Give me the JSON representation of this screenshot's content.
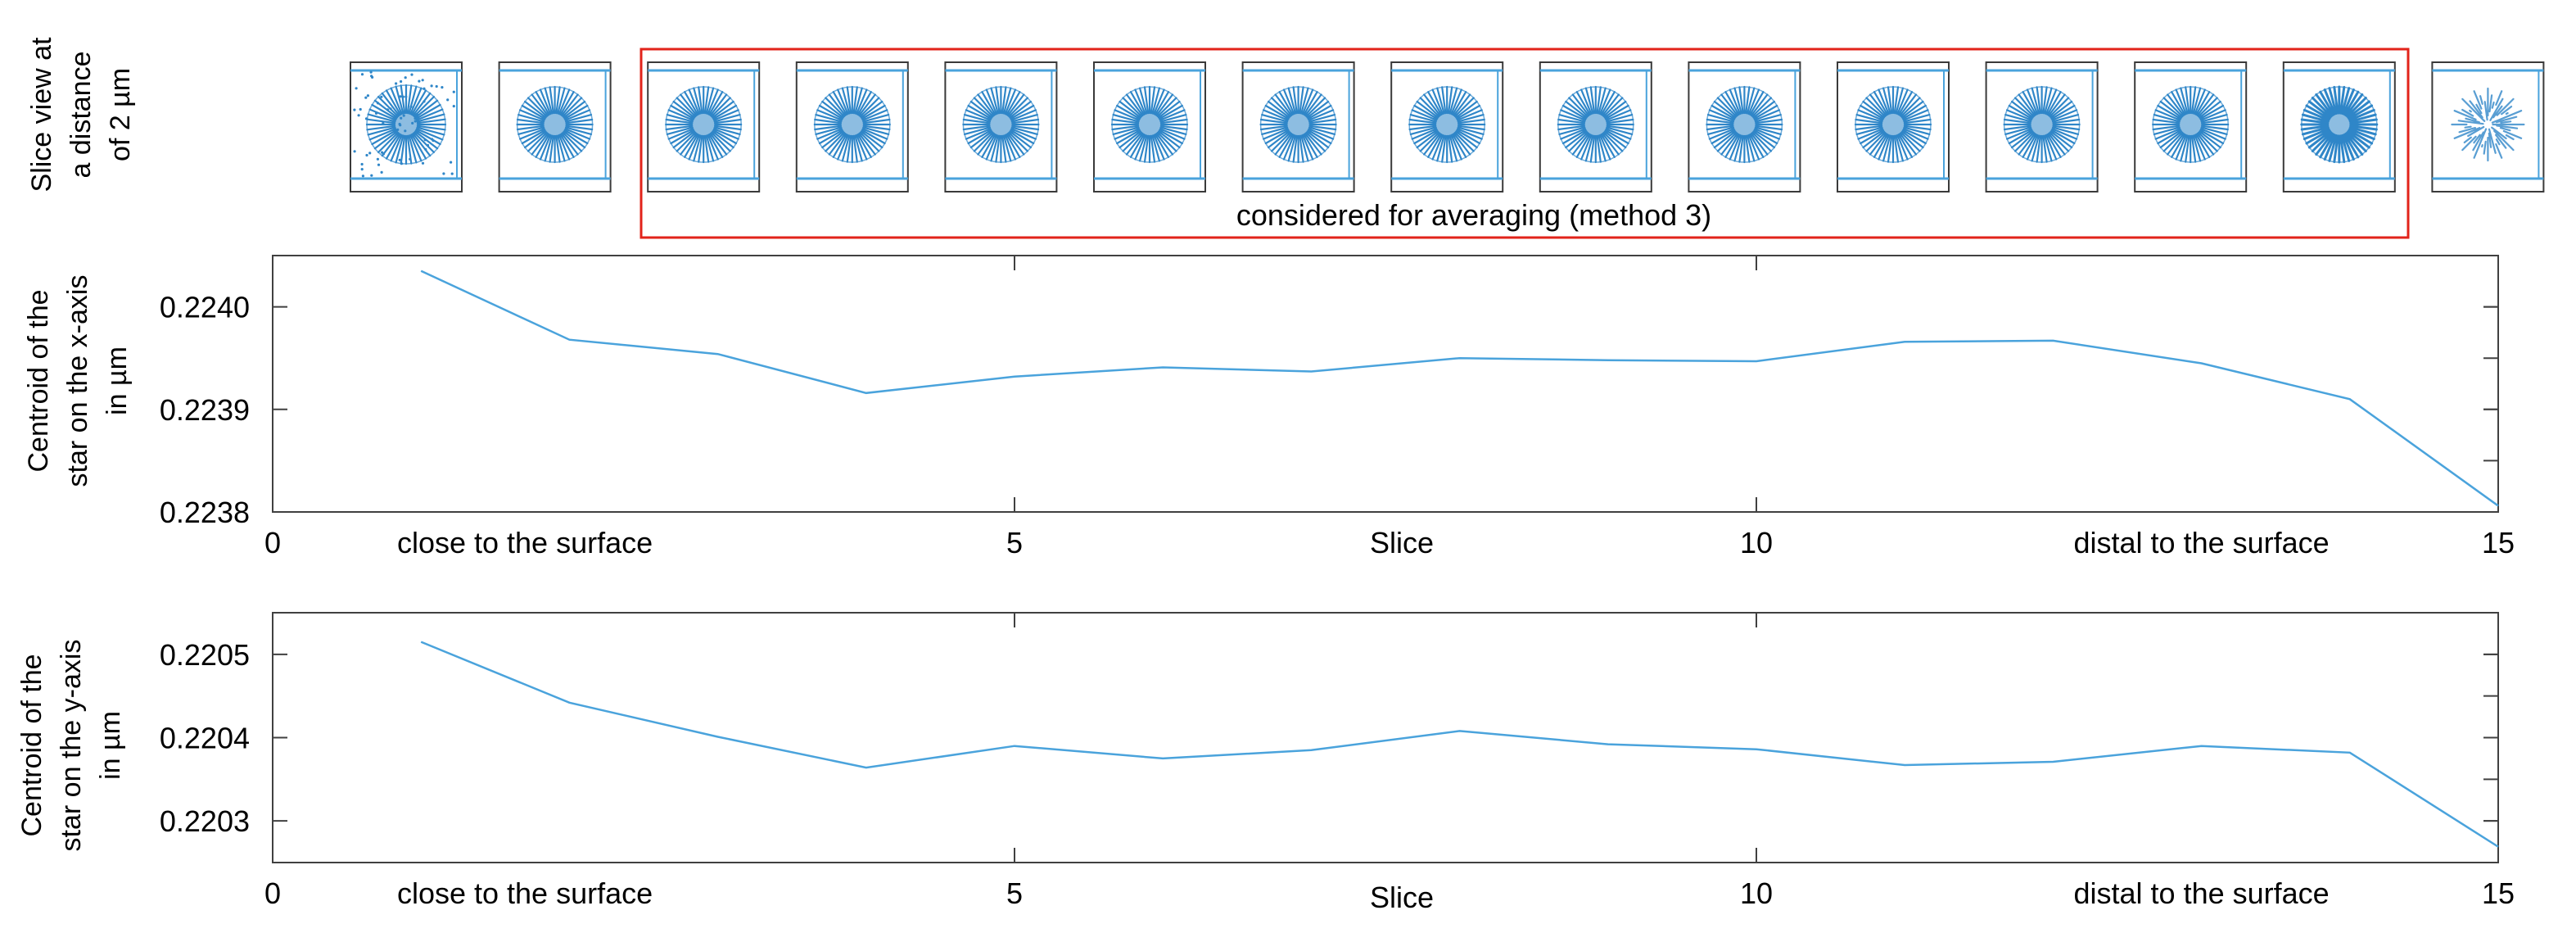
{
  "colors": {
    "line": "#4aa3dc",
    "star": "#2f86c8",
    "frame": "#3a3a3a",
    "highlight": "#e2231a",
    "axis": "#404040"
  },
  "slice_strip": {
    "ylabel_lines": [
      "Slice view at",
      "a distance",
      "of 2 µm"
    ],
    "thumbnail_count": 15,
    "highlight_range": [
      3,
      14
    ],
    "highlight_label": "considered for averaging (method 3)"
  },
  "chart_data": [
    {
      "type": "line",
      "title": "",
      "ylabel_lines": [
        "Centroid of the",
        "star on the x-axis",
        "in µm"
      ],
      "xlabel": "Slice",
      "xlim": [
        0,
        15
      ],
      "ylim": [
        0.2238,
        0.22405
      ],
      "x_ticks": [
        0,
        5,
        10,
        15
      ],
      "y_ticks": [
        0.2238,
        0.2239,
        0.224
      ],
      "y_tick_labels": [
        "0.2238",
        "0.2239",
        "0.2240"
      ],
      "x_annotations": [
        {
          "x": 1.7,
          "text": "close to the surface"
        },
        {
          "x": 13.0,
          "text": "distal to the surface"
        }
      ],
      "series": [
        {
          "x": [
            1,
            2,
            3,
            4,
            5,
            6,
            7,
            8,
            9,
            10,
            11,
            12,
            13,
            14,
            15
          ],
          "values": [
            0.224035,
            0.223968,
            0.223954,
            0.223916,
            0.223932,
            0.223941,
            0.223937,
            0.22395,
            0.223948,
            0.223947,
            0.223966,
            0.223967,
            0.223945,
            0.22391,
            0.223806
          ]
        }
      ]
    },
    {
      "type": "line",
      "title": "",
      "ylabel_lines": [
        "Centroid of the",
        "star on the y-axis",
        "in µm"
      ],
      "xlabel": "Slice",
      "xlim": [
        0,
        15
      ],
      "ylim": [
        0.22025,
        0.22055
      ],
      "x_ticks": [
        0,
        5,
        10,
        15
      ],
      "y_ticks": [
        0.2203,
        0.2204,
        0.2205
      ],
      "y_tick_labels": [
        "0.2203",
        "0.2204",
        "0.2205"
      ],
      "x_annotations": [
        {
          "x": 1.7,
          "text": "close to the surface"
        },
        {
          "x": 13.0,
          "text": "distal to the surface"
        }
      ],
      "series": [
        {
          "x": [
            1,
            2,
            3,
            4,
            5,
            6,
            7,
            8,
            9,
            10,
            11,
            12,
            13,
            14,
            15
          ],
          "values": [
            0.220515,
            0.220442,
            0.220401,
            0.220364,
            0.22039,
            0.220375,
            0.220385,
            0.220408,
            0.220392,
            0.220386,
            0.220367,
            0.220371,
            0.22039,
            0.220382,
            0.220269
          ]
        }
      ]
    }
  ]
}
